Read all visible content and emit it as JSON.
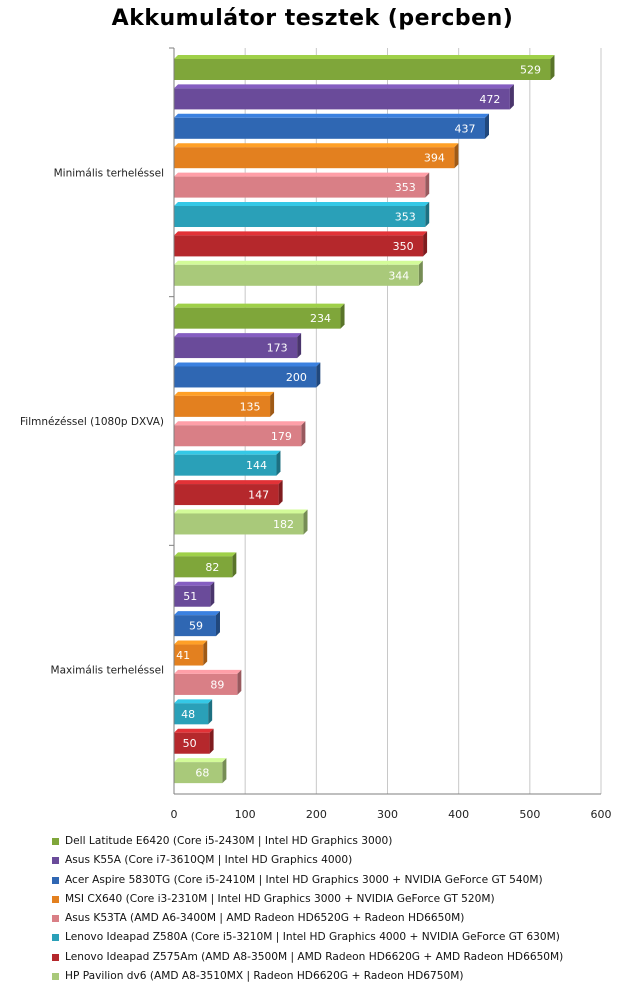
{
  "chart_data": {
    "type": "bar",
    "orientation": "horizontal",
    "title": "Akkumulátor tesztek (percben)",
    "categories": [
      "Minimális terheléssel",
      "Filmnézéssel (1080p DXVA)",
      "Maximális terheléssel"
    ],
    "xlim": [
      0,
      600
    ],
    "xticks": [
      0,
      100,
      200,
      300,
      400,
      500,
      600
    ],
    "grid": "vertical",
    "legend_position": "bottom",
    "series": [
      {
        "name": "Dell Latitude E6420 (Core i5-2430M | Intel HD Graphics 3000)",
        "color": "#7fa63a",
        "values": [
          529,
          234,
          82
        ]
      },
      {
        "name": "Asus K55A (Core i7-3610QM | Intel HD Graphics 4000)",
        "color": "#6a4b9a",
        "values": [
          472,
          173,
          51
        ]
      },
      {
        "name": "Acer Aspire 5830TG (Core i5-2410M | Intel HD Graphics 3000 + NVIDIA GeForce GT 540M)",
        "color": "#2f67b3",
        "values": [
          437,
          200,
          59
        ]
      },
      {
        "name": "MSI CX640 (Core i3-2310M | Intel HD Graphics 3000 + NVIDIA GeForce GT 520M)",
        "color": "#e3801f",
        "values": [
          394,
          135,
          41
        ]
      },
      {
        "name": "Asus K53TA (AMD A6-3400M | AMD Radeon HD6520G + Radeon HD6650M)",
        "color": "#d97f86",
        "values": [
          353,
          179,
          89
        ]
      },
      {
        "name": "Lenovo Ideapad Z580A (Core i5-3210M | Intel HD Graphics 4000 + NVIDIA GeForce GT 630M)",
        "color": "#2aa0b8",
        "values": [
          353,
          144,
          48
        ]
      },
      {
        "name": "Lenovo Ideapad Z575Am (AMD A8-3500M | AMD Radeon HD6620G + AMD Radeon HD6650M)",
        "color": "#b5282c",
        "values": [
          350,
          147,
          50
        ]
      },
      {
        "name": "HP Pavilion dv6 (AMD A8-3510MX | Radeon HD6620G + Radeon HD6750M)",
        "color": "#a9c97a",
        "values": [
          344,
          182,
          68
        ]
      }
    ]
  }
}
